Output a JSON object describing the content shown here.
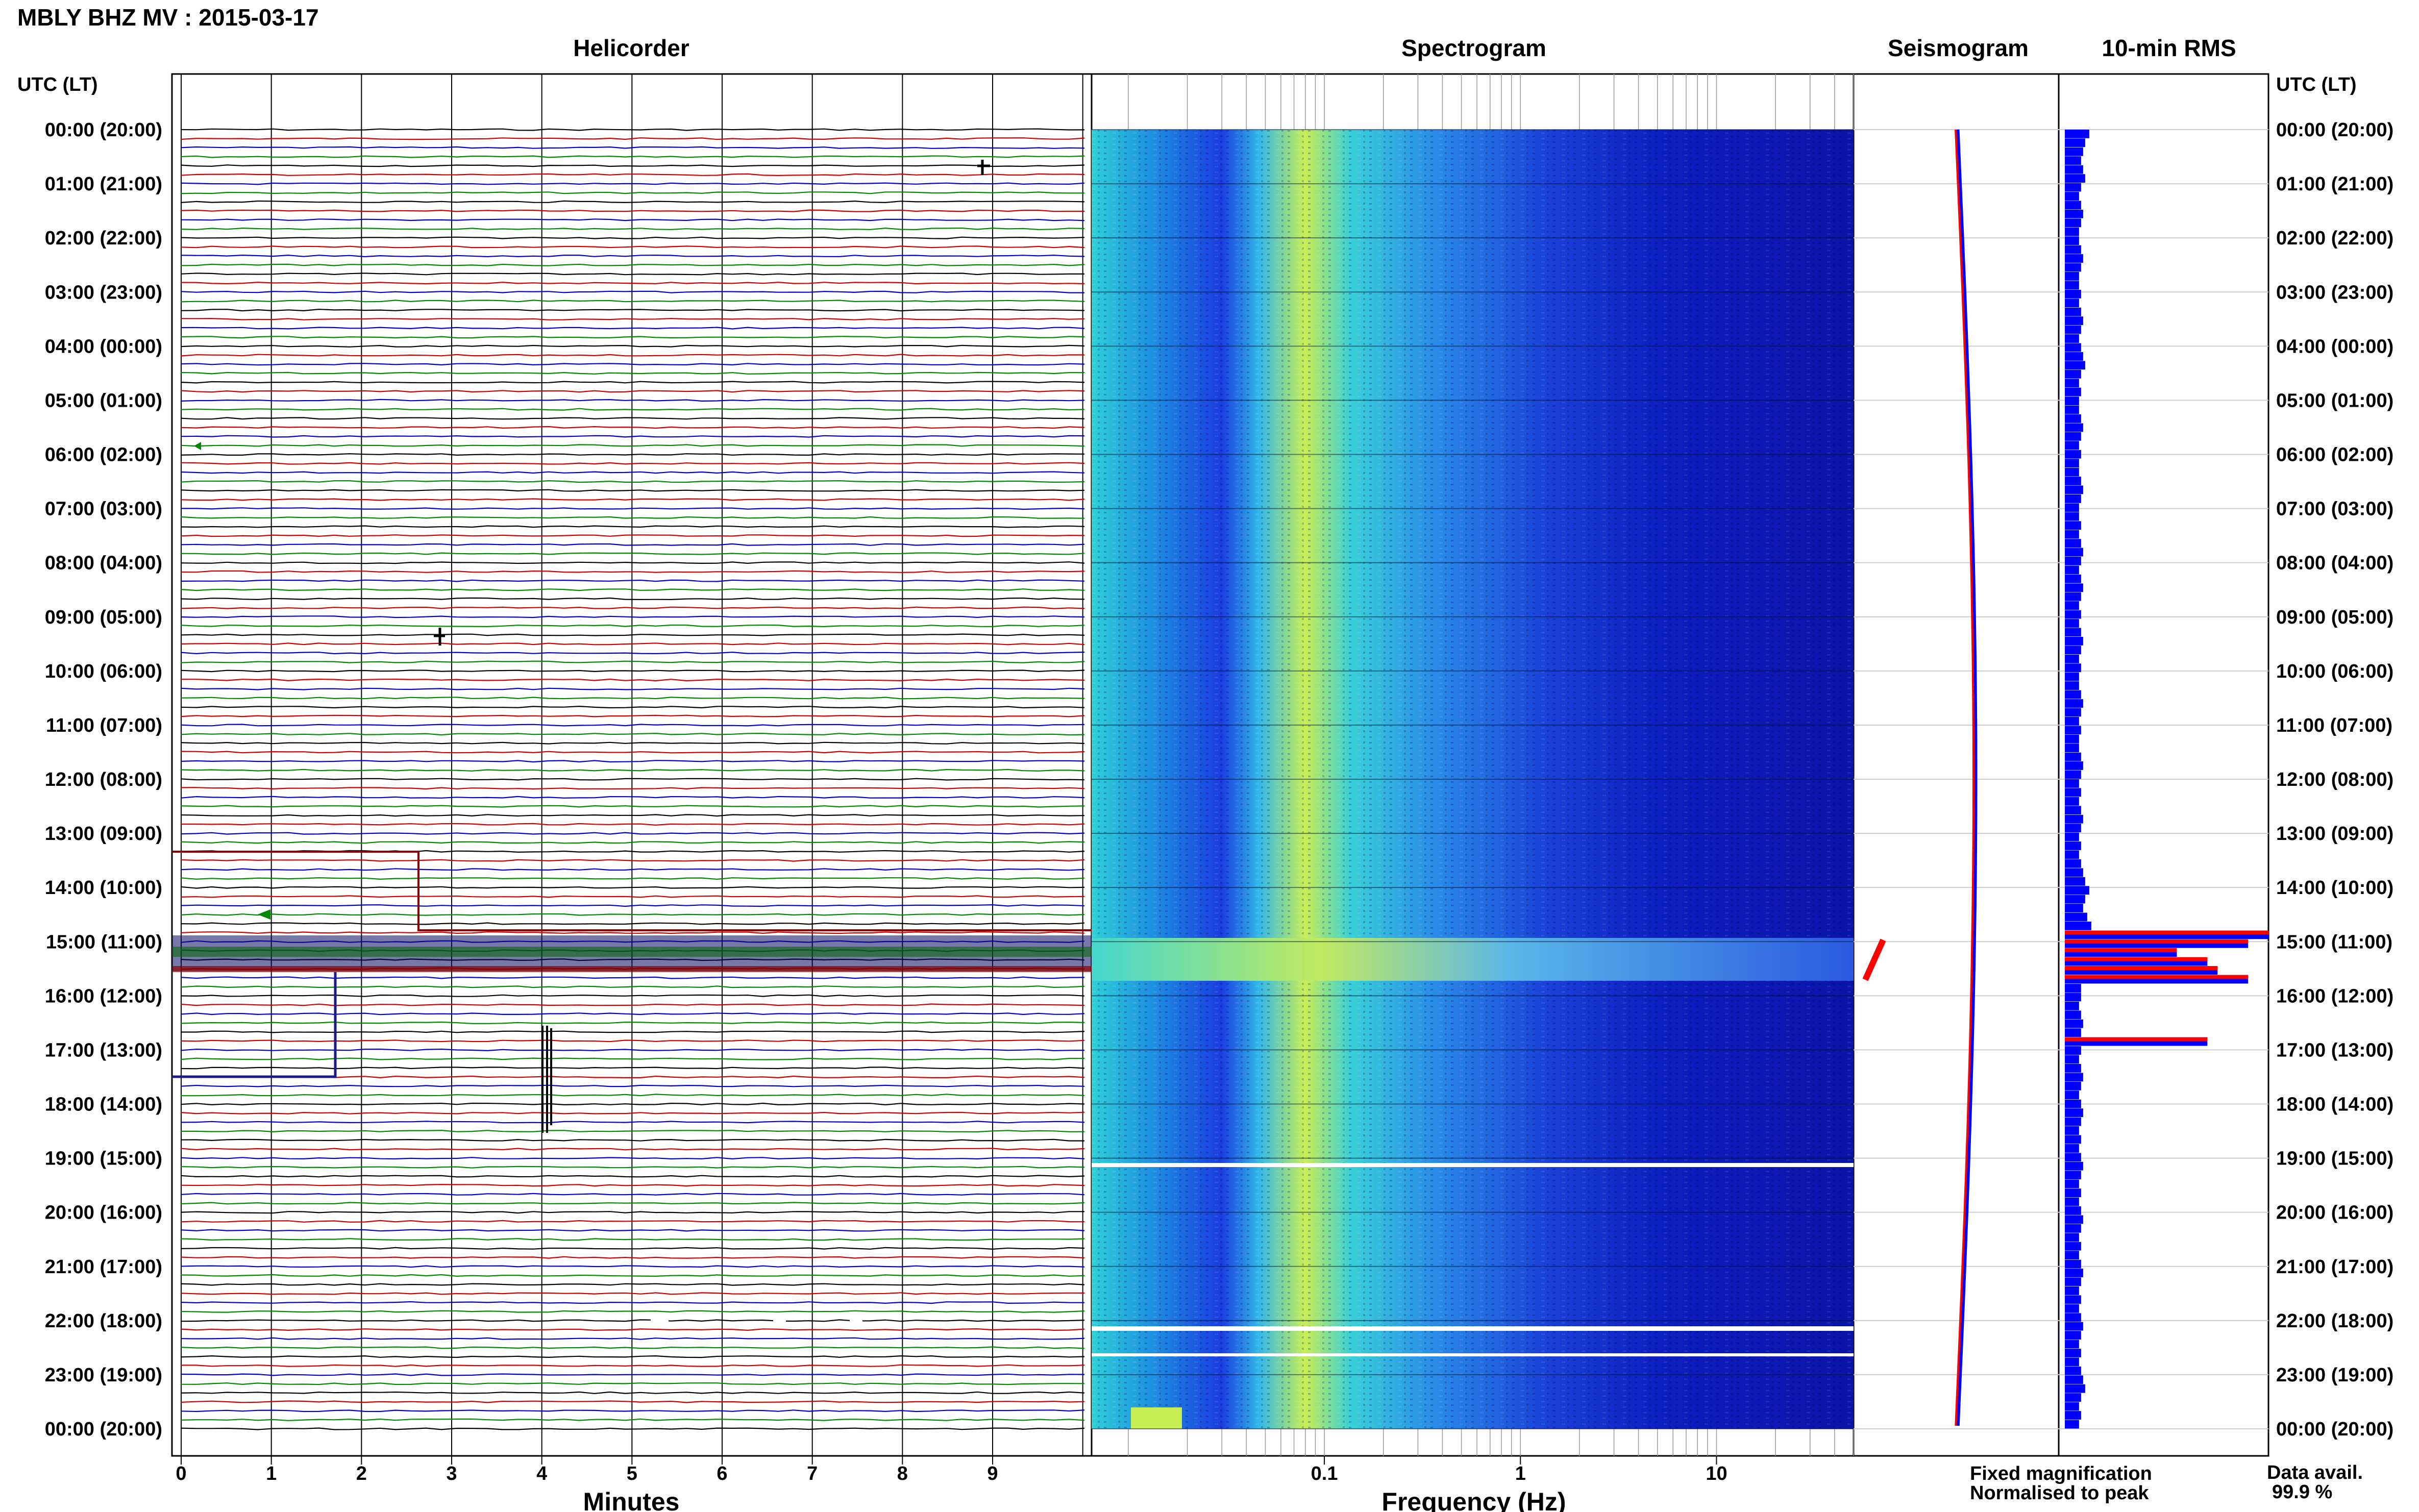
{
  "title": "MBLY BHZ MV : 2015-03-17",
  "panels": {
    "helicorder": "Helicorder",
    "spectrogram": "Spectrogram",
    "seismogram": "Seismogram",
    "rms": "10-min RMS"
  },
  "axis": {
    "utc_label": "UTC (LT)",
    "minutes_label": "Minutes",
    "frequency_label": "Frequency (Hz)",
    "minute_ticks": [
      "0",
      "1",
      "2",
      "3",
      "4",
      "5",
      "6",
      "7",
      "8",
      "9"
    ],
    "frequency_ticks": [
      "0.1",
      "1",
      "10"
    ]
  },
  "time_labels": [
    "00:00 (20:00)",
    "01:00 (21:00)",
    "02:00 (22:00)",
    "03:00 (23:00)",
    "04:00 (00:00)",
    "05:00 (01:00)",
    "06:00 (02:00)",
    "07:00 (03:00)",
    "08:00 (04:00)",
    "09:00 (05:00)",
    "10:00 (06:00)",
    "11:00 (07:00)",
    "12:00 (08:00)",
    "13:00 (09:00)",
    "14:00 (10:00)",
    "15:00 (11:00)",
    "16:00 (12:00)",
    "17:00 (13:00)",
    "18:00 (14:00)",
    "19:00 (15:00)",
    "20:00 (16:00)",
    "21:00 (17:00)",
    "22:00 (18:00)",
    "23:00 (19:00)",
    "00:00 (20:00)"
  ],
  "legend": {
    "fixed": "Fixed magnification",
    "normalised": "Normalised to peak",
    "fixed_color": "#0000ff",
    "normalised_color": "#ff0000"
  },
  "data_avail": {
    "label": "Data avail.",
    "value": "99.9 %"
  },
  "colors": {
    "trace_cycle": [
      "#000000",
      "#cc0000",
      "#0000cc",
      "#008800"
    ],
    "spectrogram_low": "#0000a0",
    "spectrogram_high": "#ccee44"
  },
  "chart_data": {
    "type": "heatmap",
    "rms_fixed_relative": [
      0.12,
      0.1,
      0.09,
      0.08,
      0.09,
      0.1,
      0.08,
      0.07,
      0.08,
      0.09,
      0.08,
      0.07,
      0.07,
      0.08,
      0.09,
      0.08,
      0.07,
      0.07,
      0.08,
      0.07,
      0.08,
      0.09,
      0.08,
      0.07,
      0.08,
      0.09,
      0.1,
      0.08,
      0.07,
      0.08,
      0.07,
      0.07,
      0.08,
      0.09,
      0.08,
      0.07,
      0.08,
      0.07,
      0.07,
      0.08,
      0.09,
      0.08,
      0.07,
      0.07,
      0.08,
      0.07,
      0.08,
      0.09,
      0.08,
      0.07,
      0.08,
      0.09,
      0.08,
      0.07,
      0.08,
      0.07,
      0.08,
      0.09,
      0.08,
      0.07,
      0.08,
      0.07,
      0.07,
      0.08,
      0.09,
      0.08,
      0.07,
      0.08,
      0.07,
      0.07,
      0.08,
      0.09,
      0.08,
      0.07,
      0.08,
      0.07,
      0.08,
      0.09,
      0.08,
      0.07,
      0.08,
      0.07,
      0.08,
      0.09,
      0.1,
      0.12,
      0.1,
      0.09,
      0.11,
      0.13,
      1.0,
      0.9,
      0.55,
      0.7,
      0.75,
      0.9,
      0.08,
      0.08,
      0.07,
      0.08,
      0.09,
      0.08,
      0.7,
      0.08,
      0.07,
      0.08,
      0.09,
      0.08,
      0.07,
      0.08,
      0.09,
      0.08,
      0.07,
      0.08,
      0.07,
      0.08,
      0.09,
      0.08,
      0.07,
      0.08,
      0.07,
      0.08,
      0.09,
      0.08,
      0.07,
      0.08,
      0.07,
      0.08,
      0.09,
      0.08,
      0.07,
      0.08,
      0.07,
      0.08,
      0.09,
      0.08,
      0.07,
      0.08,
      0.07,
      0.08,
      0.09,
      0.1,
      0.08,
      0.07,
      0.08,
      0.07
    ]
  }
}
